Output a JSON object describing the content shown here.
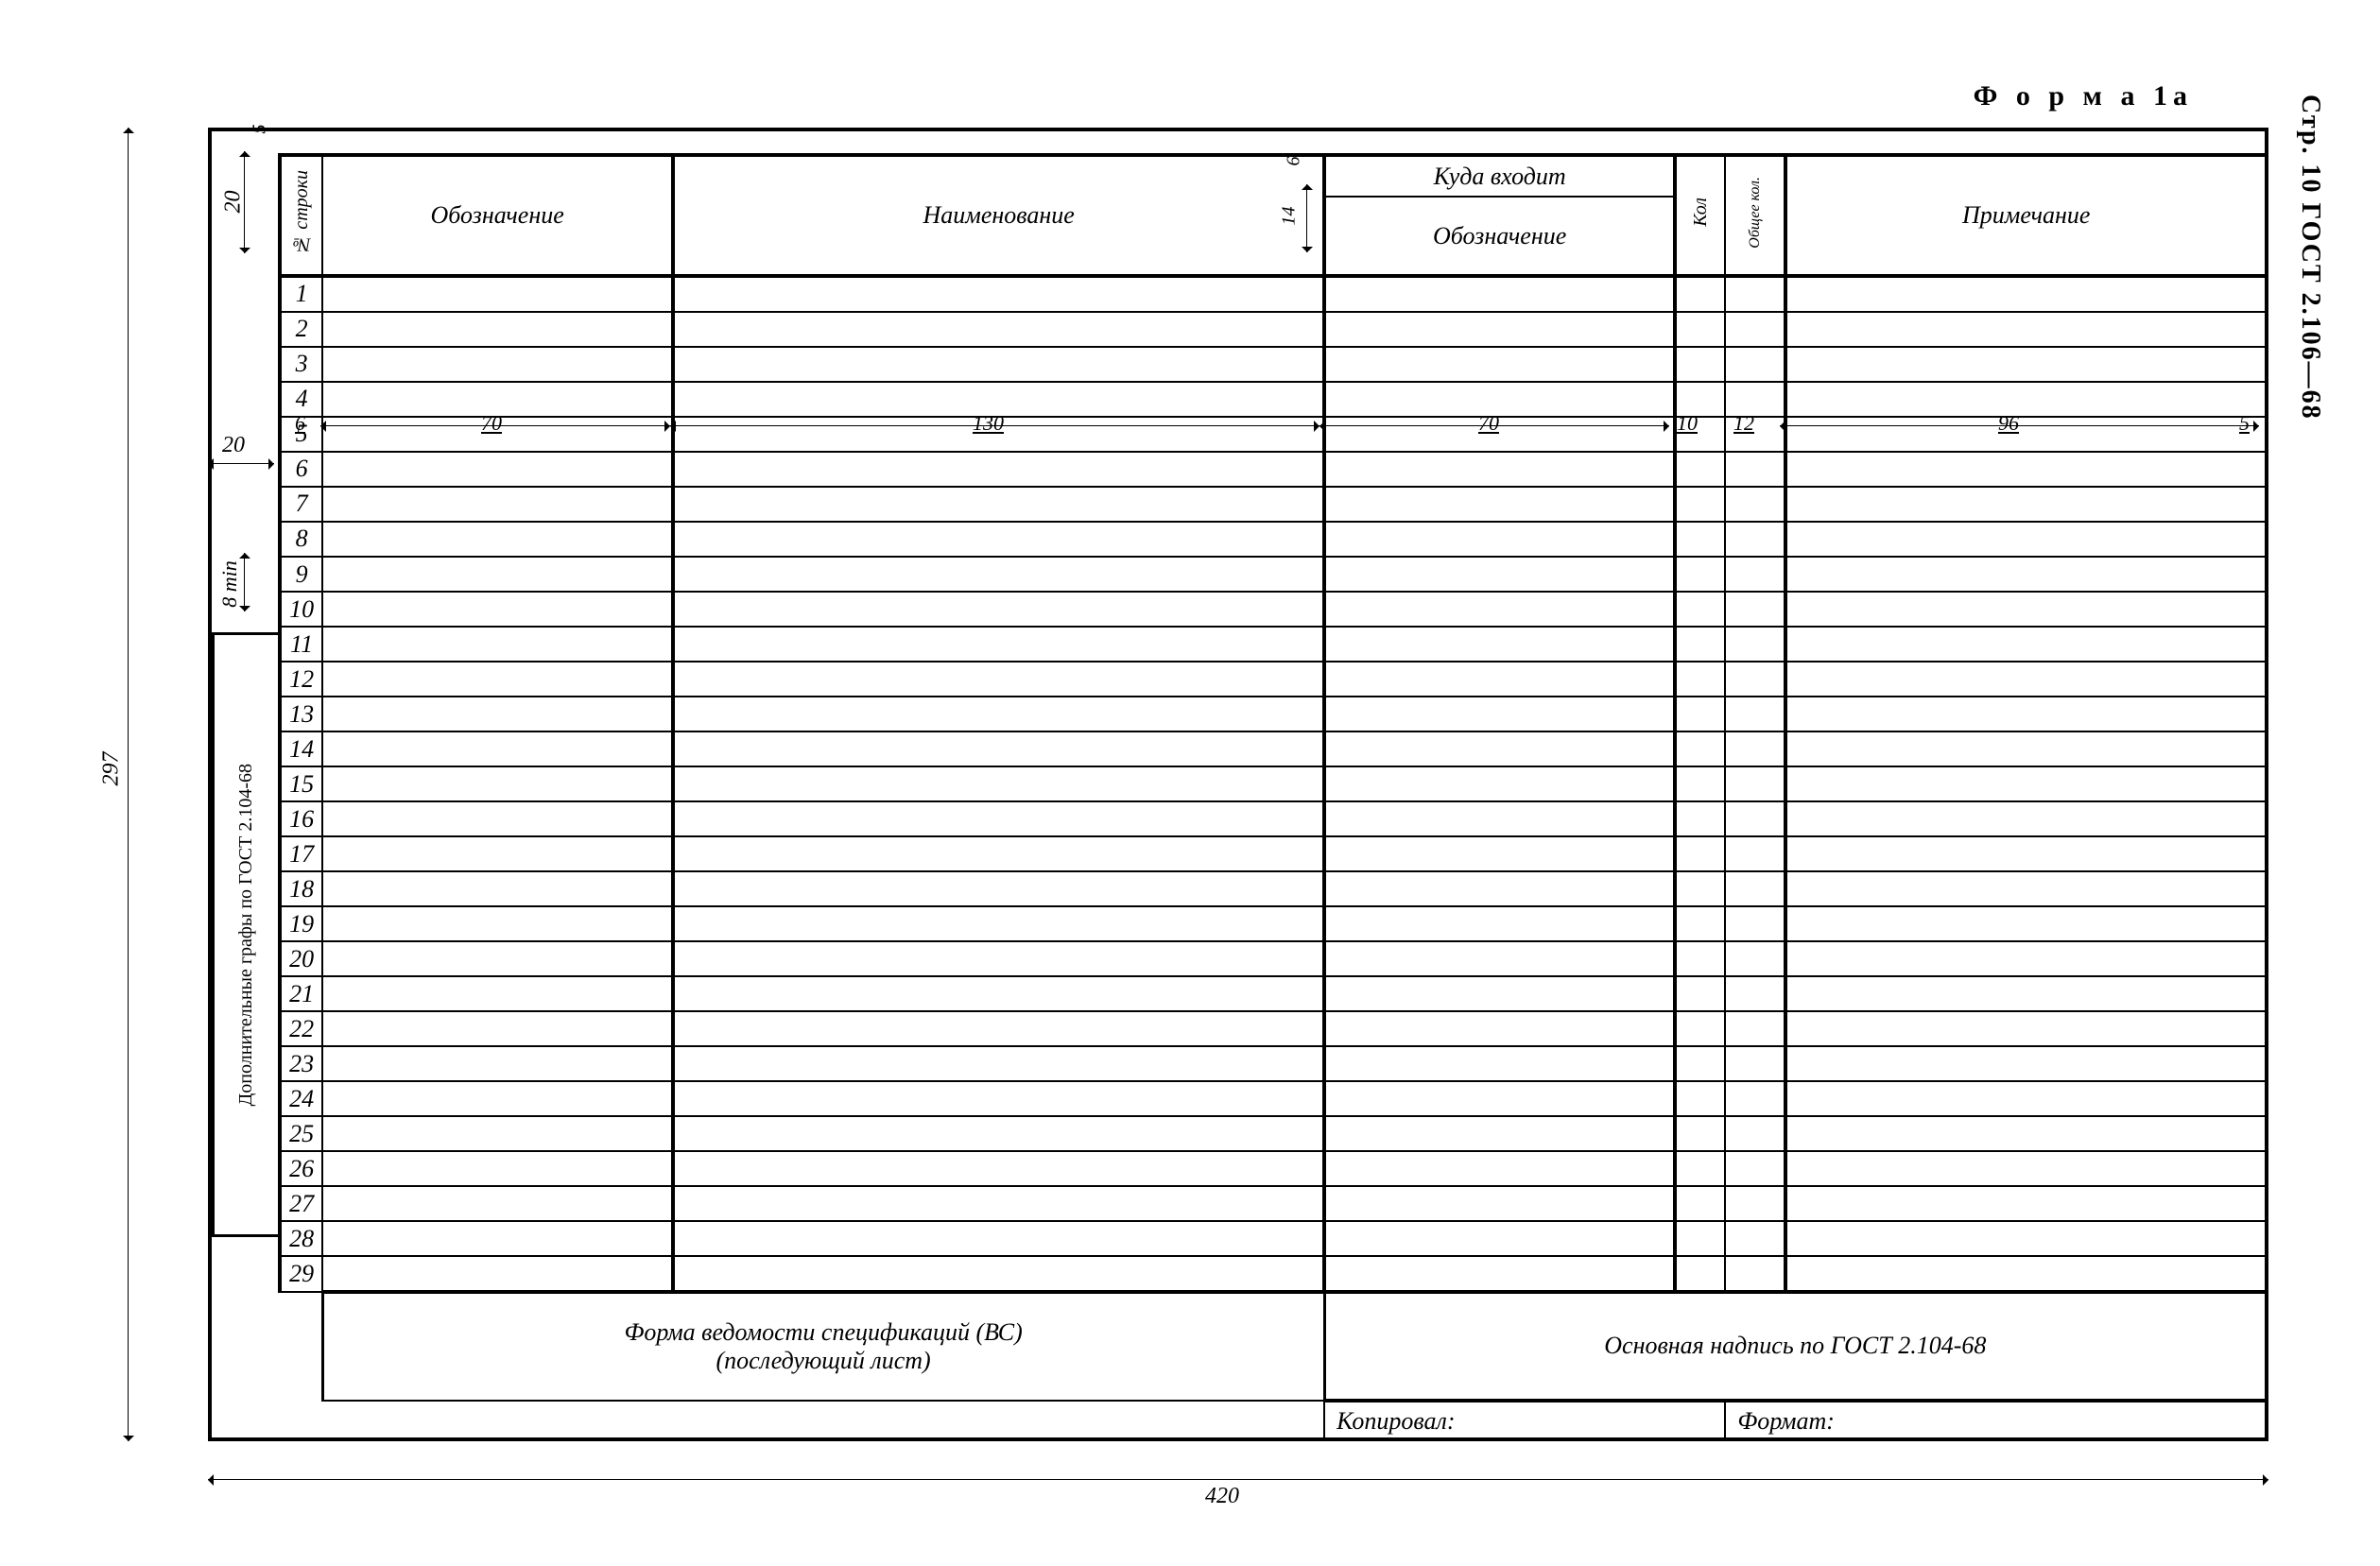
{
  "side_title": "Стр. 10 ГОСТ 2.106—68",
  "form_title": "Ф о р м а  1а",
  "dimensions": {
    "top_gap": "5",
    "header_h": "20",
    "left_margin": "20",
    "row_h_min": "8 min",
    "total_h": "297",
    "total_w": "420",
    "kuda_h": "6",
    "designation_h": "14",
    "right_margin": "5"
  },
  "columns": {
    "w_rownum": "6",
    "w_designation": "70",
    "w_name": "130",
    "w_kuda_design": "70",
    "w_kol": "10",
    "w_obshee": "12",
    "w_note": "96",
    "w_edge": "5"
  },
  "headers": {
    "rownum": "№ строки",
    "designation": "Обозначение",
    "name": "Наименование",
    "kuda": "Куда входит",
    "kuda_design": "Обозначение",
    "kol": "Кол",
    "obshee": "Общее кол.",
    "note": "Примечание"
  },
  "row_count": 29,
  "left_sidebar": "Дополнительные графы по ГОСТ 2.104-68",
  "footer": {
    "left_line1": "Форма ведомости спецификаций (ВС)",
    "left_line2": "(последующий лист)",
    "right": "Основная надпись по ГОСТ 2.104-68",
    "kopir": "Копировал:",
    "format": "Формат:"
  },
  "colors": {
    "line": "#000000",
    "bg": "#ffffff"
  }
}
